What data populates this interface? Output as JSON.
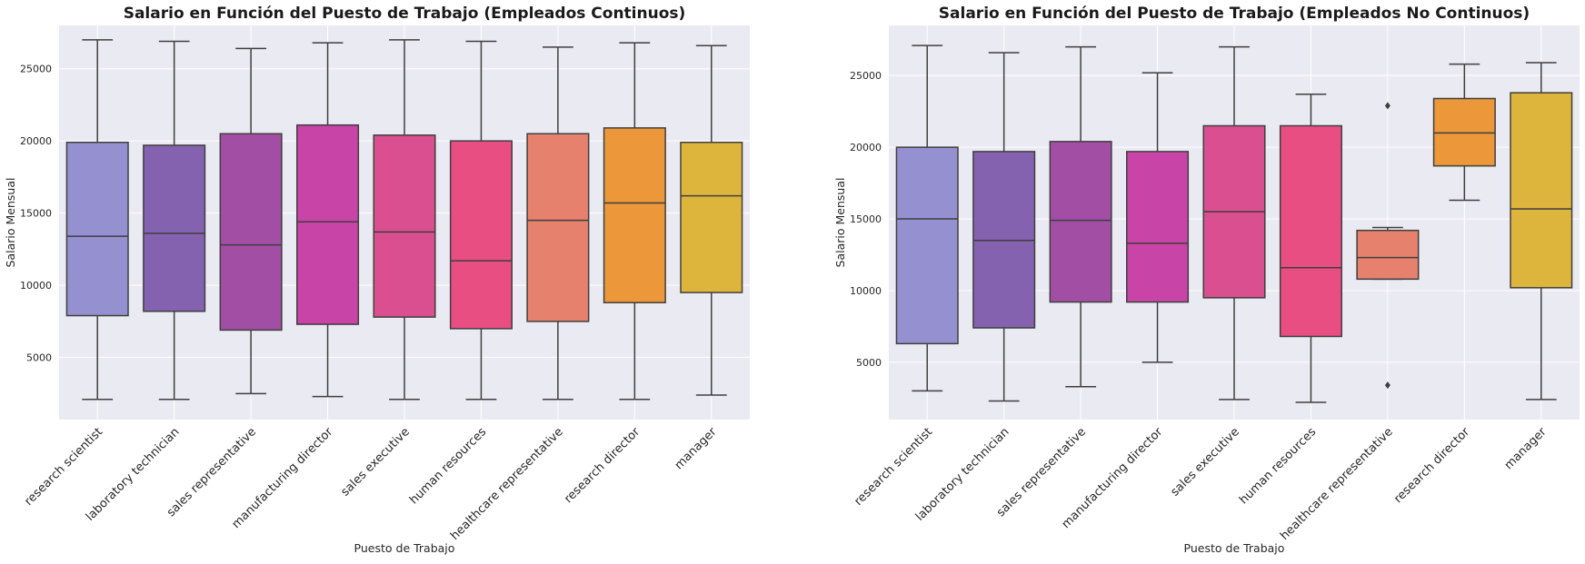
{
  "chart_data": [
    {
      "type": "box",
      "title": "Salario en Función del Puesto de Trabajo (Empleados Continuos)",
      "xlabel": "Puesto de Trabajo",
      "ylabel": "Salario Mensual",
      "ylim": [
        700,
        28000
      ],
      "yticks": [
        5000,
        10000,
        15000,
        20000,
        25000
      ],
      "grid": true,
      "categories": [
        "research scientist",
        "laboratory technician",
        "sales representative",
        "manufacturing director",
        "sales executive",
        "human resources",
        "healthcare representative",
        "research director",
        "manager"
      ],
      "boxes": [
        {
          "whislo": 2100,
          "q1": 7900,
          "med": 13400,
          "q3": 19900,
          "whishi": 27000,
          "fliers": []
        },
        {
          "whislo": 2100,
          "q1": 8200,
          "med": 13600,
          "q3": 19700,
          "whishi": 26900,
          "fliers": []
        },
        {
          "whislo": 2500,
          "q1": 6900,
          "med": 12800,
          "q3": 20500,
          "whishi": 26400,
          "fliers": []
        },
        {
          "whislo": 2300,
          "q1": 7300,
          "med": 14400,
          "q3": 21100,
          "whishi": 26800,
          "fliers": []
        },
        {
          "whislo": 2100,
          "q1": 7800,
          "med": 13700,
          "q3": 20400,
          "whishi": 27000,
          "fliers": []
        },
        {
          "whislo": 2100,
          "q1": 7000,
          "med": 11700,
          "q3": 20000,
          "whishi": 26900,
          "fliers": []
        },
        {
          "whislo": 2100,
          "q1": 7500,
          "med": 14500,
          "q3": 20500,
          "whishi": 26500,
          "fliers": []
        },
        {
          "whislo": 2100,
          "q1": 8800,
          "med": 15700,
          "q3": 20900,
          "whishi": 26800,
          "fliers": []
        },
        {
          "whislo": 2400,
          "q1": 9500,
          "med": 16200,
          "q3": 19900,
          "whishi": 26600,
          "fliers": []
        }
      ],
      "colors": [
        "#9590d0",
        "#8462b0",
        "#a24ea5",
        "#c944a7",
        "#d94f8f",
        "#e94e82",
        "#e6816d",
        "#ec9739",
        "#ddb53c"
      ]
    },
    {
      "type": "box",
      "title": "Salario en Función del Puesto de Trabajo (Empleados No Continuos)",
      "xlabel": "Puesto de Trabajo",
      "ylabel": "Salario Mensual",
      "ylim": [
        1000,
        28500
      ],
      "yticks": [
        5000,
        10000,
        15000,
        20000,
        25000
      ],
      "grid": true,
      "categories": [
        "research scientist",
        "laboratory technician",
        "sales representative",
        "manufacturing director",
        "sales executive",
        "human resources",
        "healthcare representative",
        "research director",
        "manager"
      ],
      "boxes": [
        {
          "whislo": 3000,
          "q1": 6300,
          "med": 15000,
          "q3": 20000,
          "whishi": 27100,
          "fliers": []
        },
        {
          "whislo": 2300,
          "q1": 7400,
          "med": 13500,
          "q3": 19700,
          "whishi": 26600,
          "fliers": []
        },
        {
          "whislo": 3300,
          "q1": 9200,
          "med": 14900,
          "q3": 20400,
          "whishi": 27000,
          "fliers": []
        },
        {
          "whislo": 5000,
          "q1": 9200,
          "med": 13300,
          "q3": 19700,
          "whishi": 25200,
          "fliers": []
        },
        {
          "whislo": 2400,
          "q1": 9500,
          "med": 15500,
          "q3": 21500,
          "whishi": 27000,
          "fliers": []
        },
        {
          "whislo": 2200,
          "q1": 6800,
          "med": 11600,
          "q3": 21500,
          "whishi": 23700,
          "fliers": []
        },
        {
          "whislo": 10800,
          "q1": 10800,
          "med": 12300,
          "q3": 14200,
          "whishi": 14400,
          "fliers": [
            3400,
            22900
          ]
        },
        {
          "whislo": 16300,
          "q1": 18700,
          "med": 21000,
          "q3": 23400,
          "whishi": 25800,
          "fliers": []
        },
        {
          "whislo": 2400,
          "q1": 10200,
          "med": 15700,
          "q3": 23800,
          "whishi": 25900,
          "fliers": []
        }
      ],
      "colors": [
        "#9590d0",
        "#8462b0",
        "#a24ea5",
        "#c944a7",
        "#d94f8f",
        "#e94e82",
        "#e6816d",
        "#ec9739",
        "#ddb53c"
      ]
    }
  ]
}
